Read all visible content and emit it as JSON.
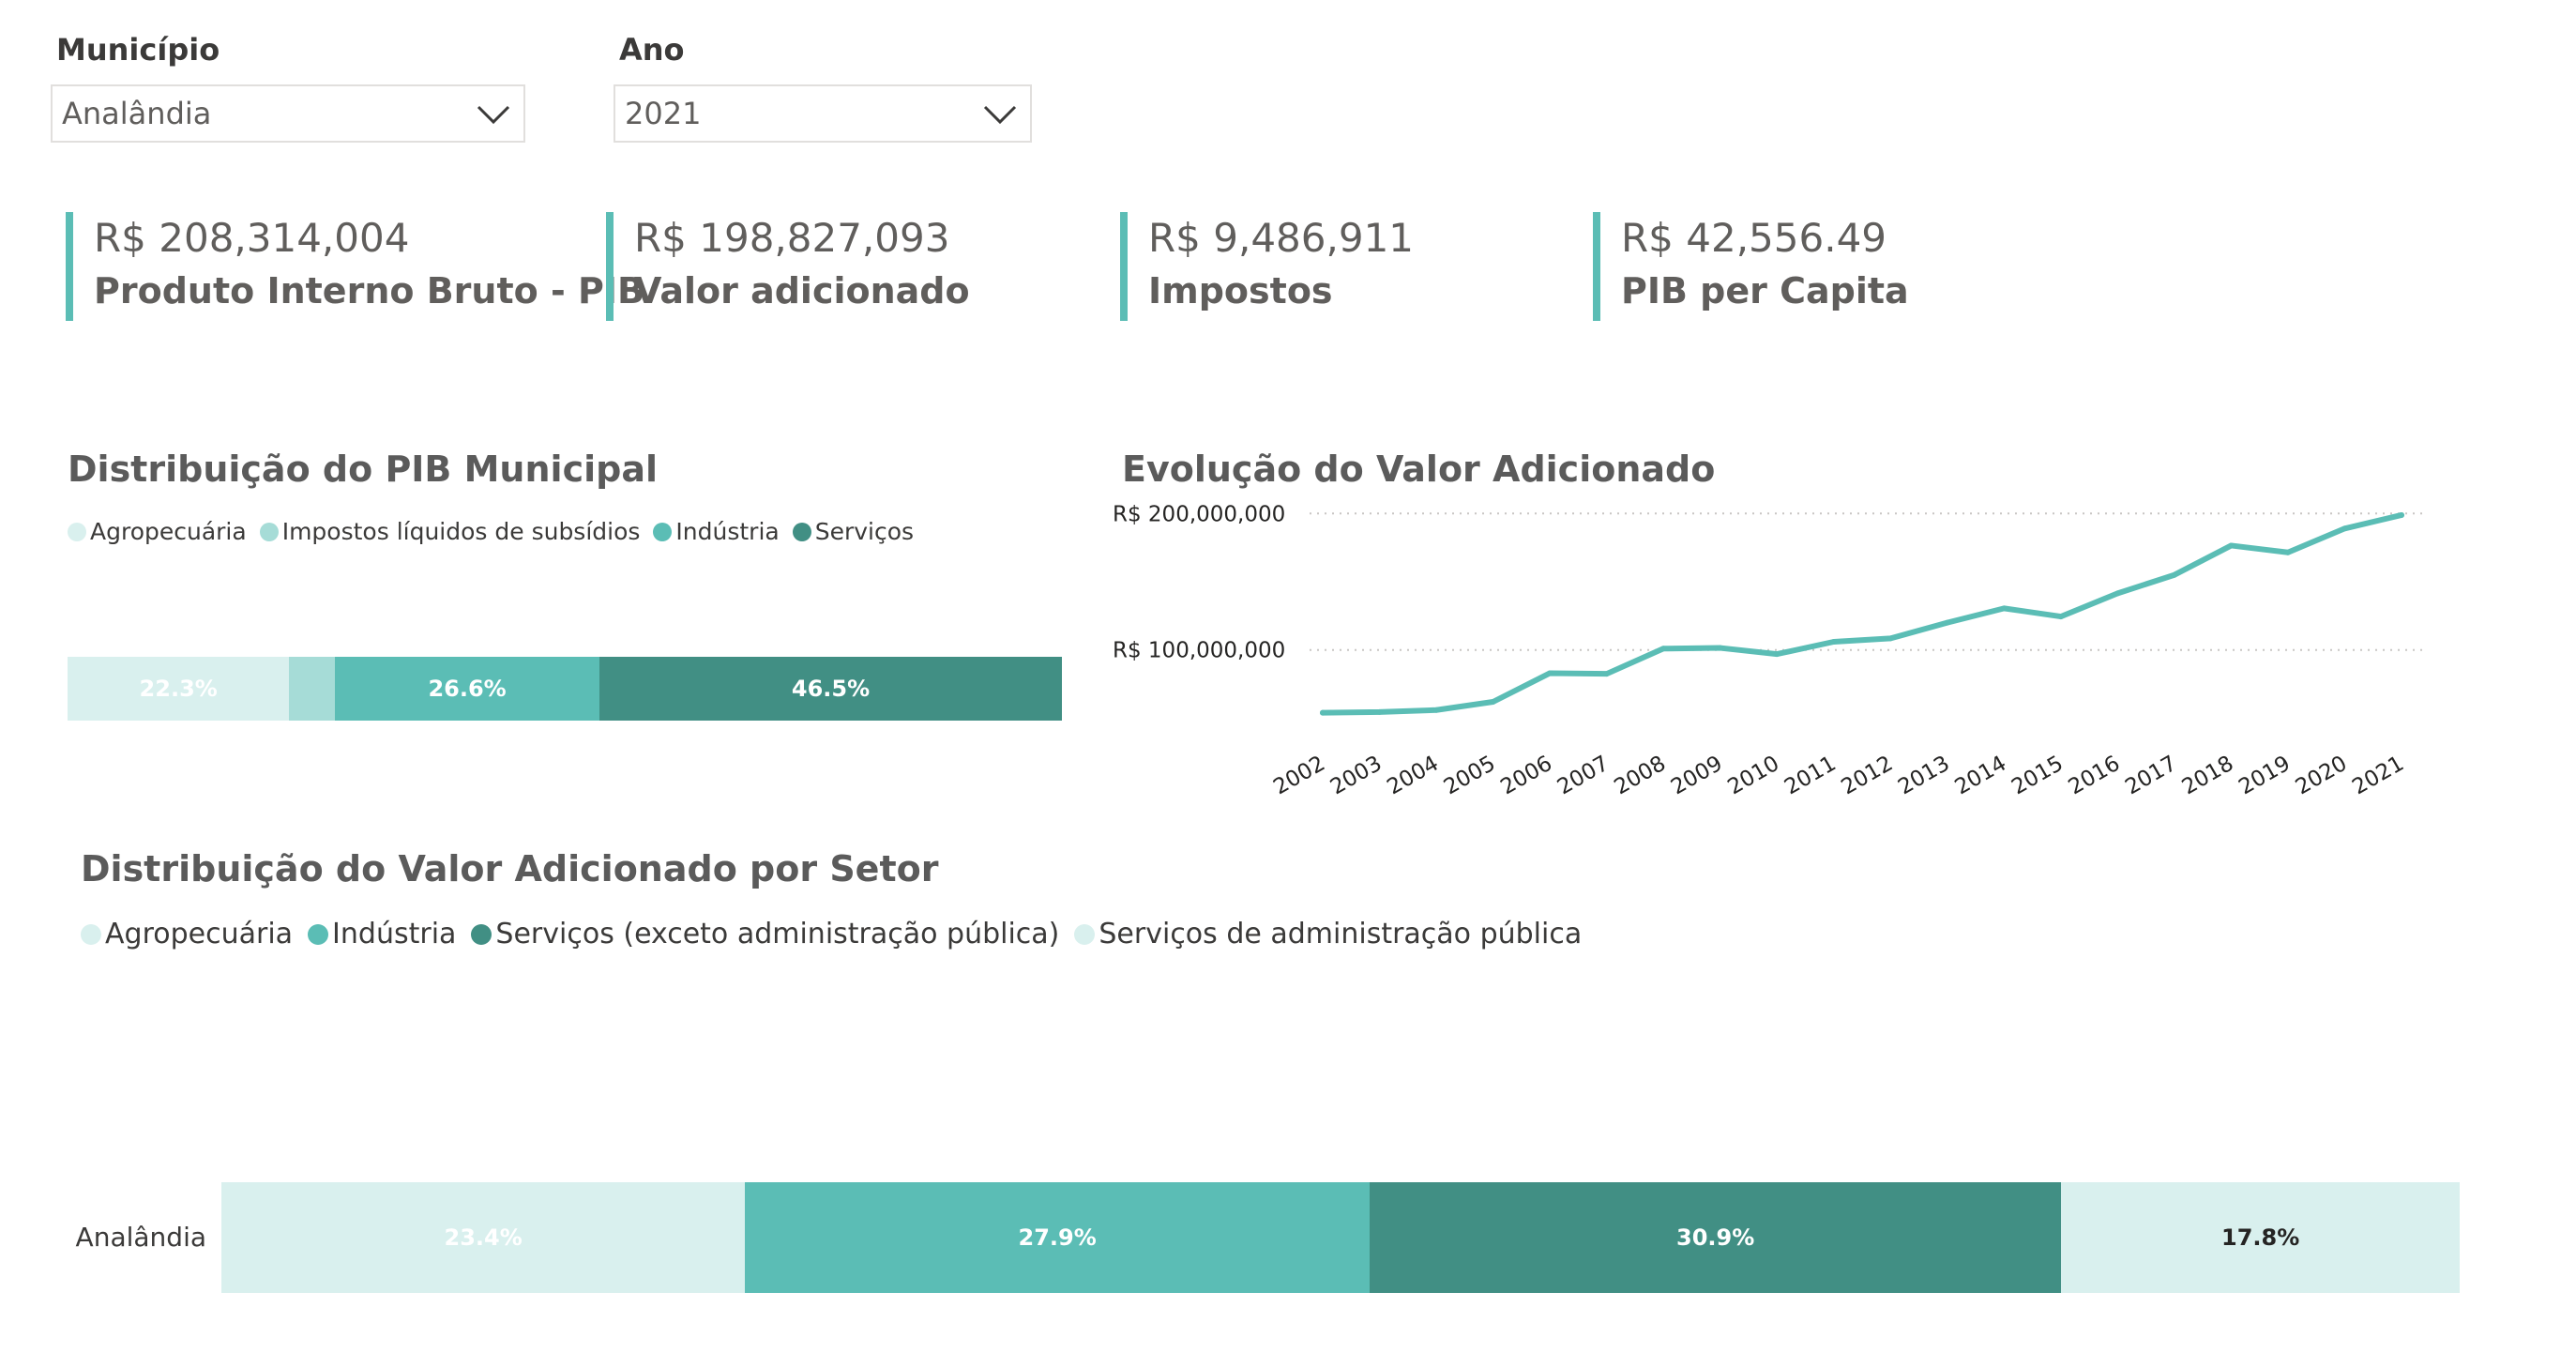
{
  "filters": {
    "municipio": {
      "label": "Município",
      "value": "Analândia"
    },
    "ano": {
      "label": "Ano",
      "value": "2021"
    }
  },
  "kpis": [
    {
      "value": "R$ 208,314,004",
      "label": "Produto Interno Bruto - PIB"
    },
    {
      "value": "R$ 198,827,093",
      "label": "Valor adicionado"
    },
    {
      "value": "R$ 9,486,911",
      "label": "Impostos"
    },
    {
      "value": "R$ 42,556.49",
      "label": "PIB per Capita"
    }
  ],
  "colors": {
    "agro": "#d9f0ee",
    "impostos": "#a6dcd7",
    "industria": "#5bbdb5",
    "servicos": "#418f84",
    "adm_publica": "#d9f0ee",
    "line": "#5bbdb5",
    "accent": "#5bbdb5"
  },
  "chart_data": [
    {
      "id": "pib-distribution",
      "type": "bar",
      "orientation": "horizontal-stacked-100",
      "title": "Distribuição do PIB Municipal",
      "legend_position": "top-left",
      "series": [
        {
          "name": "Agropecuária",
          "value": 22.3,
          "label": "22.3%",
          "color": "#d9f0ee",
          "label_color": "#ffffff"
        },
        {
          "name": "Impostos líquidos de subsídios",
          "value": 4.6,
          "label": "",
          "color": "#a6dcd7",
          "label_color": "#ffffff"
        },
        {
          "name": "Indústria",
          "value": 26.6,
          "label": "26.6%",
          "color": "#5bbdb5",
          "label_color": "#ffffff"
        },
        {
          "name": "Serviços",
          "value": 46.5,
          "label": "46.5%",
          "color": "#418f84",
          "label_color": "#ffffff"
        }
      ]
    },
    {
      "id": "valor-adicionado-evolution",
      "type": "line",
      "title": "Evolução do Valor Adicionado",
      "x": [
        "2002",
        "2003",
        "2004",
        "2005",
        "2006",
        "2007",
        "2008",
        "2009",
        "2010",
        "2011",
        "2012",
        "2013",
        "2014",
        "2015",
        "2016",
        "2017",
        "2018",
        "2019",
        "2020",
        "2021"
      ],
      "values": [
        54000000,
        54500000,
        56000000,
        62000000,
        83000000,
        82500000,
        101000000,
        101500000,
        97000000,
        106000000,
        108500000,
        120000000,
        130500000,
        124500000,
        141500000,
        155000000,
        176500000,
        171500000,
        189000000,
        198827093
      ],
      "ylim": [
        40000000,
        205000000
      ],
      "yticks": [
        100000000,
        200000000
      ],
      "ytick_labels": [
        "R$ 100,000,000",
        "R$ 200,000,000"
      ],
      "grid": true,
      "grid_style": "dotted-horizontal"
    },
    {
      "id": "va-by-sector",
      "type": "bar",
      "orientation": "horizontal-stacked-100",
      "title": "Distribuição do Valor Adicionado por Setor",
      "legend_position": "top-left",
      "categories": [
        "Analândia"
      ],
      "series": [
        {
          "name": "Agropecuária",
          "value": 23.4,
          "label": "23.4%",
          "color": "#d9f0ee",
          "label_color": "#ffffff"
        },
        {
          "name": "Indústria",
          "value": 27.9,
          "label": "27.9%",
          "color": "#5bbdb5",
          "label_color": "#ffffff"
        },
        {
          "name": "Serviços (exceto administração pública)",
          "value": 30.9,
          "label": "30.9%",
          "color": "#418f84",
          "label_color": "#ffffff"
        },
        {
          "name": "Serviços de administração pública",
          "value": 17.8,
          "label": "17.8%",
          "color": "#d9f0ee",
          "label_color": "#252423"
        }
      ]
    }
  ]
}
